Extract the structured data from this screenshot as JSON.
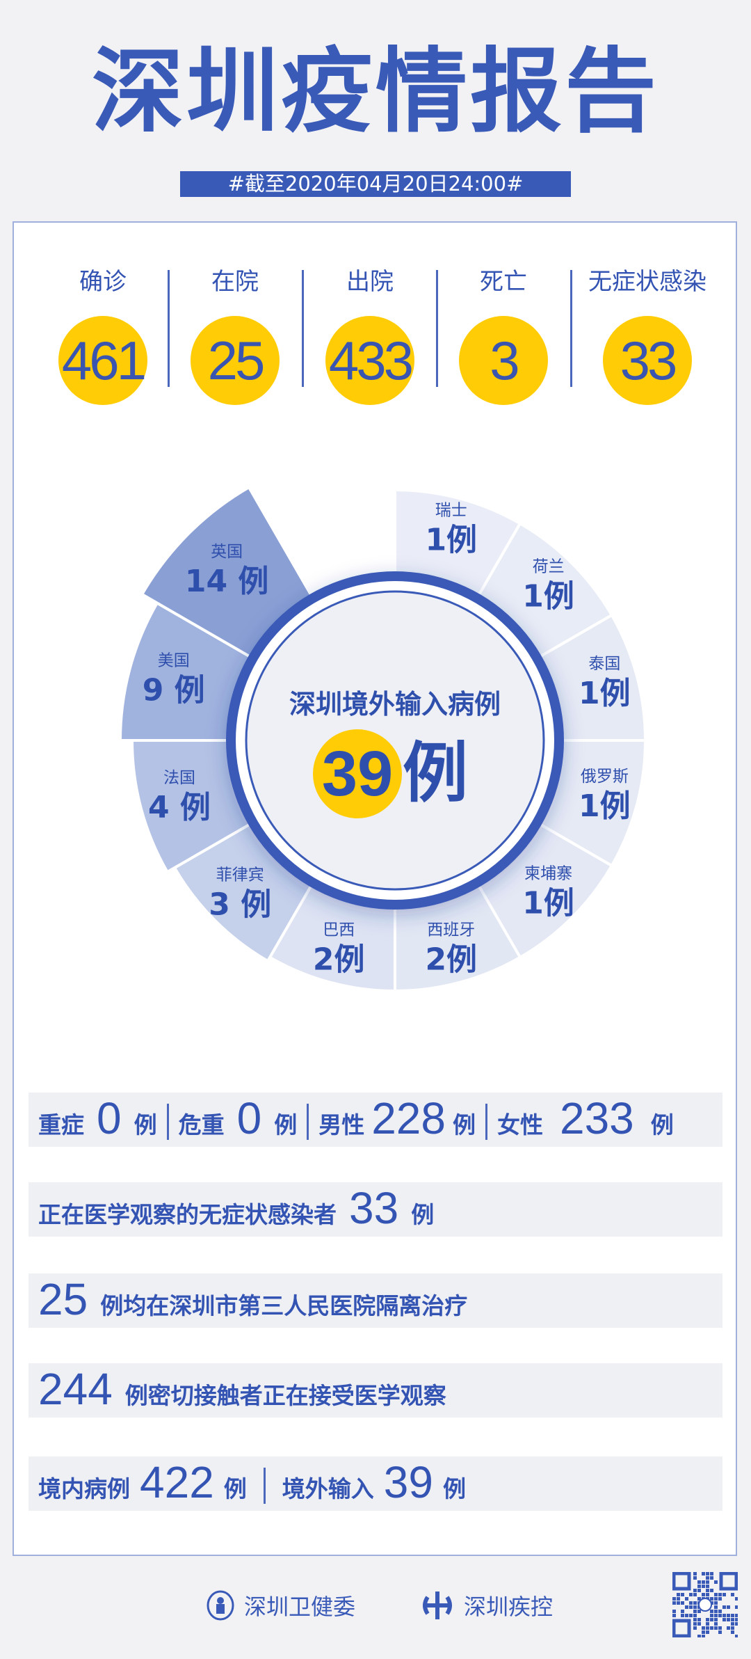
{
  "header": {
    "title": "深圳疫情报告",
    "date": "#截至2020年04月20日24:00#"
  },
  "stats": [
    {
      "label": "确诊",
      "value": "461"
    },
    {
      "label": "在院",
      "value": "25"
    },
    {
      "label": "出院",
      "value": "433"
    },
    {
      "label": "死亡",
      "value": "3"
    },
    {
      "label": "无症状感染",
      "value": "33"
    }
  ],
  "chart_data": {
    "type": "pie",
    "title": "深圳境外输入病例",
    "total": "39",
    "unit": "例",
    "categories": [
      "瑞士",
      "荷兰",
      "泰国",
      "俄罗斯",
      "柬埔寨",
      "西班牙",
      "巴西",
      "菲律宾",
      "法国",
      "美国",
      "英国"
    ],
    "values": [
      1,
      1,
      1,
      1,
      1,
      2,
      2,
      3,
      4,
      9,
      14
    ],
    "labels": [
      "1例",
      "1例",
      "1例",
      "1例",
      "1例",
      "2例",
      "2例",
      "3 例",
      "4 例",
      "9 例",
      "14 例"
    ]
  },
  "rows": {
    "severe_label": "重症",
    "severe": "0",
    "critical_label": "危重",
    "critical": "0",
    "male_label": "男性",
    "male": "228",
    "female_label": "女性",
    "female": "233",
    "unit": "例",
    "asym_text": "正在医学观察的无症状感染者",
    "asym": "33",
    "hosp": "25",
    "hosp_text": "例均在深圳市第三人民医院隔离治疗",
    "contacts": "244",
    "contacts_text": "例密切接触者正在接受医学观察",
    "local_label": "境内病例",
    "local": "422",
    "imported_label": "境外输入",
    "imported": "39"
  },
  "footer": {
    "org1": "深圳卫健委",
    "org2": "深圳疾控"
  },
  "colors": {
    "blue": "#3a5ab8",
    "yellow": "#ffcc05"
  }
}
